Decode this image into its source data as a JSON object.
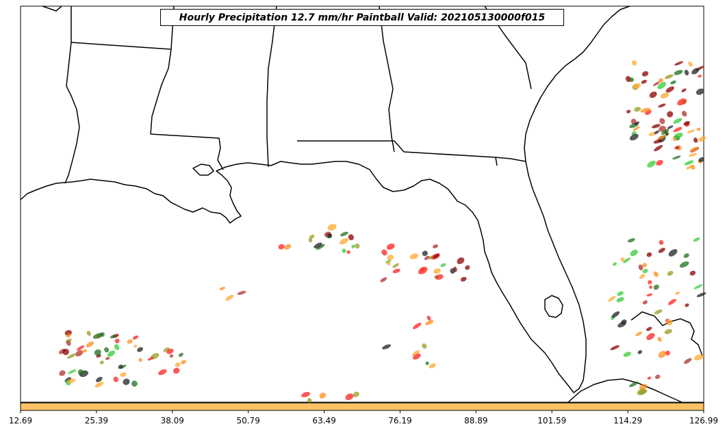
{
  "title": "Hourly Precipitation 12.7 mm/hr Paintball Valid: 202105130000f015",
  "colors": {
    "colorbar": "#ffc266",
    "coast": "#000000",
    "member_palette": [
      "#ff2020",
      "#8b0000",
      "#33cc33",
      "#1f6f1f",
      "#999922",
      "#ff8c1a",
      "#ffaa33",
      "#222222",
      "#b03030"
    ]
  },
  "colorbar": {
    "ticks": [
      "12.69",
      "25.39",
      "38.09",
      "50.79",
      "63.49",
      "76.19",
      "88.89",
      "101.59",
      "114.29",
      "126.99"
    ],
    "range": [
      12.69,
      126.99
    ]
  }
}
